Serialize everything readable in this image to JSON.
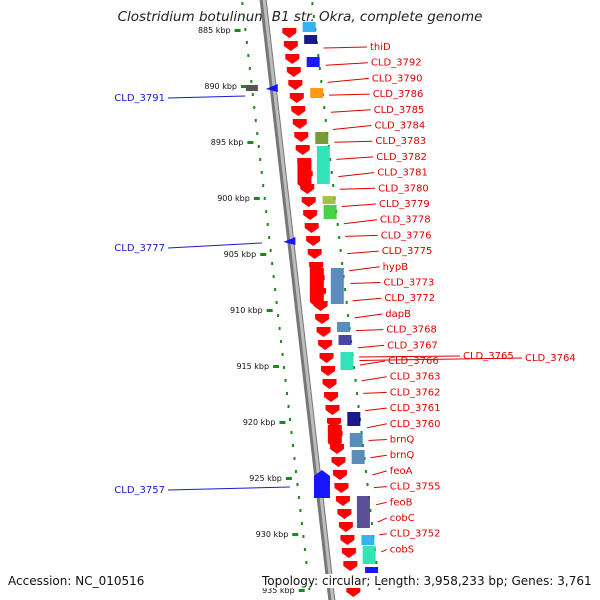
{
  "title": "Clostridium botulinum B1 str. Okra, complete genome",
  "footer": {
    "accession": "Accession: NC_010516",
    "topology": "Topology: circular; Length: 3,958,233 bp; Genes: 3,761"
  },
  "colors": {
    "forward_cds": "#ff0000",
    "reverse_cds": "#1515ff",
    "backbone": "#999999",
    "tick_ring": "#1a8a1a",
    "label_red": "#e00000",
    "label_blue": "#1a1ad0"
  },
  "axis_ticks": [
    "885 kbp",
    "890 kbp",
    "895 kbp",
    "900 kbp",
    "905 kbp",
    "910 kbp",
    "915 kbp",
    "920 kbp",
    "925 kbp",
    "930 kbp",
    "935 kbp"
  ],
  "reverse_labels": [
    "CLD_3791",
    "CLD_3777",
    "CLD_3757"
  ],
  "forward_labels": [
    "thiD",
    "CLD_3792",
    "CLD_3790",
    "CLD_3786",
    "CLD_3785",
    "CLD_3784",
    "CLD_3783",
    "CLD_3782",
    "CLD_3781",
    "CLD_3780",
    "CLD_3779",
    "CLD_3778",
    "CLD_3776",
    "CLD_3775",
    "hypB",
    "CLD_3773",
    "CLD_3772",
    "dapB",
    "CLD_3768",
    "CLD_3767",
    "CLD_3766",
    "CLD_3765",
    "CLD_3764",
    "CLD_3763",
    "CLD_3762",
    "CLD_3761",
    "CLD_3760",
    "brnQ",
    "brnQ",
    "feoA",
    "CLD_3755",
    "feoB",
    "cobC",
    "CLD_3752",
    "cobS"
  ]
}
